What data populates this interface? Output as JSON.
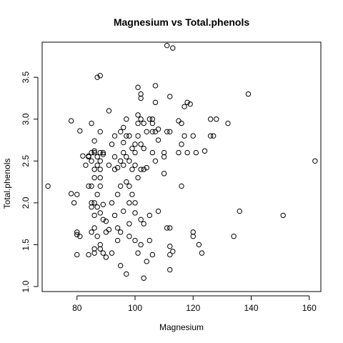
{
  "chart_data": {
    "type": "scatter",
    "title": "Magnesium vs Total.phenols",
    "xlabel": "Magnesium",
    "ylabel": "Total.phenols",
    "xlim": [
      68,
      164
    ],
    "ylim": [
      0.94,
      3.92
    ],
    "xticks": [
      80,
      100,
      120,
      140,
      160
    ],
    "yticks": [
      1.0,
      1.5,
      2.0,
      2.5,
      3.0,
      3.5
    ],
    "yticks_labels": [
      "1.0",
      "1.5",
      "2.0",
      "2.5",
      "3.0",
      "3.5"
    ],
    "grid": false,
    "legend": "none",
    "marker": "open-circle",
    "series": [
      {
        "x": [
          70,
          78,
          78,
          79,
          80,
          80,
          80,
          80,
          81,
          81,
          82,
          83,
          84,
          84,
          84,
          84,
          85,
          85,
          85,
          85,
          85,
          85,
          85,
          86,
          86,
          86,
          86,
          86,
          86,
          86,
          86,
          86,
          86,
          87,
          87,
          87,
          87,
          87,
          87,
          88,
          88,
          88,
          88,
          88,
          88,
          88,
          88,
          88,
          88,
          89,
          89,
          89,
          89,
          89,
          90,
          90,
          90,
          91,
          91,
          91,
          92,
          92,
          92,
          93,
          93,
          93,
          93,
          94,
          94,
          94,
          94,
          95,
          95,
          95,
          95,
          95,
          96,
          96,
          96,
          96,
          96,
          97,
          97,
          97,
          97,
          97,
          98,
          98,
          98,
          98,
          98,
          98,
          99,
          99,
          99,
          100,
          100,
          100,
          100,
          100,
          100,
          101,
          101,
          101,
          101,
          101,
          101,
          102,
          102,
          102,
          102,
          102,
          102,
          102,
          103,
          103,
          103,
          103,
          103,
          104,
          104,
          104,
          105,
          105,
          105,
          106,
          106,
          106,
          106,
          106,
          107,
          107,
          107,
          107,
          108,
          108,
          108,
          110,
          110,
          110,
          111,
          111,
          111,
          112,
          112,
          112,
          112,
          112,
          112,
          113,
          113,
          115,
          115,
          116,
          116,
          116,
          117,
          117,
          118,
          118,
          119,
          120,
          120,
          120,
          121,
          122,
          123,
          124,
          126,
          126,
          127,
          128,
          132,
          134,
          136,
          139,
          151,
          162
        ],
        "y": [
          2.2,
          2.98,
          2.11,
          2.0,
          2.1,
          1.65,
          1.62,
          1.38,
          1.6,
          2.86,
          2.56,
          2.45,
          2.56,
          2.55,
          2.2,
          1.38,
          2.95,
          2.6,
          2.5,
          2.2,
          2.0,
          1.95,
          1.65,
          2.74,
          2.62,
          2.6,
          2.4,
          2.3,
          2.0,
          1.85,
          1.7,
          1.45,
          1.4,
          3.5,
          2.55,
          2.45,
          2.1,
          1.95,
          1.6,
          3.52,
          2.85,
          2.6,
          2.5,
          2.4,
          2.3,
          2.2,
          1.88,
          1.5,
          1.45,
          2.6,
          2.58,
          1.98,
          1.8,
          1.4,
          1.78,
          1.65,
          1.35,
          3.1,
          2.45,
          1.68,
          2.7,
          2.0,
          1.4,
          2.8,
          2.55,
          2.4,
          1.85,
          2.42,
          2.1,
          1.7,
          1.55,
          2.85,
          2.5,
          2.2,
          1.65,
          1.25,
          2.9,
          2.72,
          2.6,
          2.45,
          1.9,
          3.0,
          2.8,
          2.55,
          2.25,
          1.15,
          2.8,
          2.5,
          2.2,
          2.0,
          1.75,
          1.6,
          2.65,
          2.4,
          2.1,
          2.7,
          2.6,
          2.45,
          2.0,
          1.88,
          1.55,
          3.38,
          3.05,
          2.95,
          2.8,
          2.3,
          1.4,
          3.3,
          3.25,
          3.0,
          2.7,
          2.4,
          1.8,
          1.5,
          2.95,
          2.65,
          2.4,
          1.75,
          1.1,
          2.85,
          2.42,
          1.3,
          3.0,
          1.55,
          1.85,
          3.0,
          2.95,
          2.85,
          2.6,
          1.38,
          3.4,
          3.2,
          2.85,
          2.5,
          2.88,
          2.75,
          1.9,
          2.6,
          2.55,
          2.35,
          3.88,
          2.85,
          1.7,
          3.27,
          2.85,
          1.7,
          1.48,
          1.38,
          1.2,
          3.85,
          1.42,
          2.98,
          2.6,
          2.95,
          2.7,
          2.2,
          3.15,
          2.8,
          3.2,
          2.6,
          3.18,
          2.8,
          1.65,
          1.6,
          2.6,
          1.5,
          1.4,
          2.62,
          2.8,
          3.0,
          2.8,
          3.0,
          2.95,
          1.6,
          1.9,
          3.3,
          1.85,
          2.5
        ]
      }
    ]
  }
}
